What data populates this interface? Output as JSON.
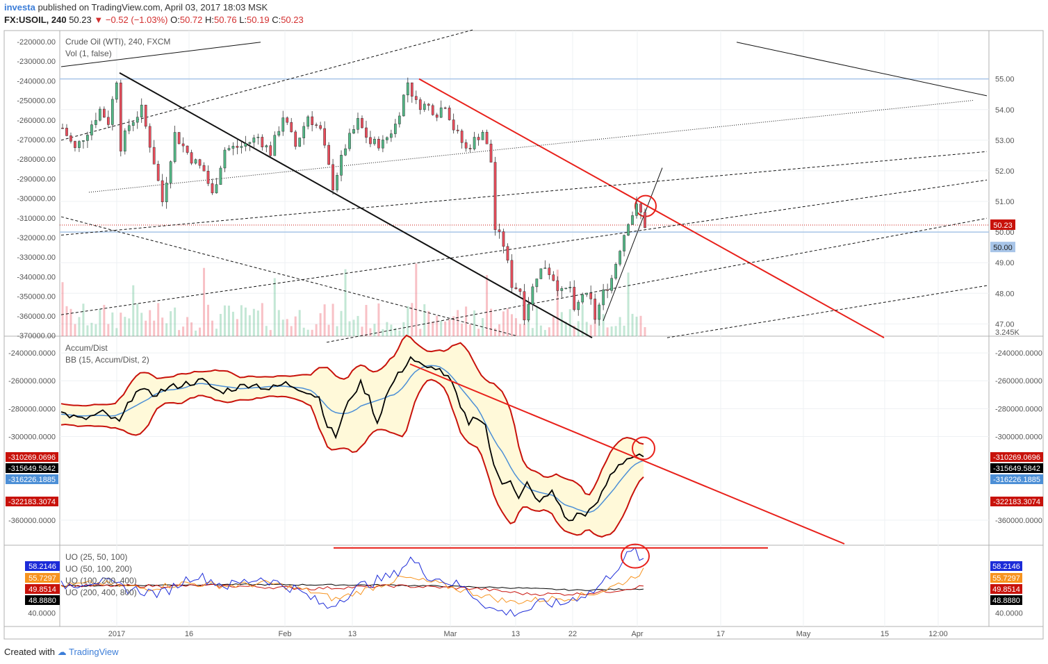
{
  "header": {
    "author": "investa",
    "published_text": "published on TradingView.com, April 03, 2017 18:03 MSK",
    "symbol": "FX:USOIL, 240",
    "last": "50.23",
    "change": "▼ −0.52 (−1.03%)",
    "o_label": "O:",
    "o": "50.72",
    "h_label": "H:",
    "h": "50.76",
    "l_label": "L:",
    "l": "50.19",
    "c_label": "C:",
    "c": "50.23"
  },
  "footer": {
    "created_with": "Created with",
    "brand": "TradingView"
  },
  "colors": {
    "up": "#53b987",
    "down": "#eb4d5c",
    "channel_red": "#e8201a",
    "bb_band": "#c8120b",
    "bb_fill": "#fff9d9",
    "bb_basis": "#4c8fd6",
    "hline": "#a8c5e8",
    "uo1": "#1c2bd8",
    "uo2": "#f7931e",
    "uo3": "#c8120b",
    "uo4": "#000000"
  },
  "chart_data": [
    {
      "type": "candlestick",
      "title": "Crude Oil (WTI), 240, FXCM",
      "subtitle": "Vol (1, false)",
      "x_ticks": [
        "2017",
        "16",
        "Feb",
        "13",
        "Mar",
        "13",
        "22",
        "Apr",
        "17",
        "May",
        "15",
        "12:00"
      ],
      "price_axis": [
        "55.00",
        "54.00",
        "53.00",
        "52.00",
        "51.00",
        "50.00",
        "49.00",
        "48.00",
        "47.00"
      ],
      "price_range": [
        46.6,
        55.9
      ],
      "volume_axis": [
        "-220000.00",
        "-230000.00",
        "-240000.00",
        "-250000.00",
        "-260000.00",
        "-270000.00",
        "-280000.00",
        "-290000.00",
        "-300000.00",
        "-310000.00",
        "-320000.00",
        "-330000.00",
        "-340000.00",
        "-350000.00",
        "-360000.00",
        "-370000.00"
      ],
      "volume_last": "3.245K",
      "last_price_label": "50.23",
      "hline_label": "50.00",
      "horizontal_levels": [
        55.0,
        50.0
      ],
      "close_path": [
        [
          0,
          53.4
        ],
        [
          3,
          52.7
        ],
        [
          6,
          53.3
        ],
        [
          9,
          54.0
        ],
        [
          11,
          53.6
        ],
        [
          13,
          55.0
        ],
        [
          14,
          52.8
        ],
        [
          16,
          53.5
        ],
        [
          19,
          54.0
        ],
        [
          22,
          52.3
        ],
        [
          24,
          51.0
        ],
        [
          27,
          53.2
        ],
        [
          31,
          52.4
        ],
        [
          34,
          52.0
        ],
        [
          36,
          51.2
        ],
        [
          39,
          52.7
        ],
        [
          43,
          52.8
        ],
        [
          47,
          53.1
        ],
        [
          50,
          52.6
        ],
        [
          53,
          53.8
        ],
        [
          56,
          52.8
        ],
        [
          59,
          53.8
        ],
        [
          62,
          53.3
        ],
        [
          65,
          51.5
        ],
        [
          68,
          52.8
        ],
        [
          71,
          53.6
        ],
        [
          74,
          52.9
        ],
        [
          77,
          52.9
        ],
        [
          80,
          53.5
        ],
        [
          83,
          54.9
        ],
        [
          85,
          54.2
        ],
        [
          88,
          54.1
        ],
        [
          90,
          53.9
        ],
        [
          92,
          54.2
        ],
        [
          94,
          53.4
        ],
        [
          97,
          52.7
        ],
        [
          99,
          53.0
        ],
        [
          101,
          53.3
        ],
        [
          103,
          52.3
        ],
        [
          104,
          50.1
        ],
        [
          106,
          49.6
        ],
        [
          108,
          48.3
        ],
        [
          110,
          48.1
        ],
        [
          111,
          47.3
        ],
        [
          114,
          48.6
        ],
        [
          116,
          48.9
        ],
        [
          118,
          48.5
        ],
        [
          120,
          48.0
        ],
        [
          122,
          48.2
        ],
        [
          123,
          47.3
        ],
        [
          125,
          48.0
        ],
        [
          127,
          47.7
        ],
        [
          128,
          47.2
        ],
        [
          130,
          48.0
        ],
        [
          132,
          48.5
        ],
        [
          134,
          49.5
        ],
        [
          136,
          50.4
        ],
        [
          138,
          50.8
        ],
        [
          139,
          50.6
        ],
        [
          140,
          50.23
        ]
      ],
      "annotations": "trendlines and parallel channel drawn on chart"
    },
    {
      "type": "line",
      "title": "Accum/Dist",
      "subtitle": "BB (15, Accum/Dist, 2)",
      "y_ticks": [
        "-240000.0000",
        "-260000.0000",
        "-280000.0000",
        "-300000.0000",
        "-360000.0000"
      ],
      "y_range": [
        -378000,
        -228000
      ],
      "value_labels": [
        {
          "text": "-310269.0696",
          "color": "#c8120b"
        },
        {
          "text": "-315649.5842",
          "color": "#000000"
        },
        {
          "text": "-316226.1885",
          "color": "#4c8fd6"
        },
        {
          "text": "-322183.3074",
          "color": "#c8120b"
        }
      ],
      "series": [
        {
          "name": "Accum/Dist",
          "values": [
            [
              0,
              -283000
            ],
            [
              5,
              -288000
            ],
            [
              10,
              -283000
            ],
            [
              14,
              -290000
            ],
            [
              18,
              -266000
            ],
            [
              22,
              -270000
            ],
            [
              26,
              -265000
            ],
            [
              30,
              -262000
            ],
            [
              34,
              -260000
            ],
            [
              38,
              -268000
            ],
            [
              42,
              -265000
            ],
            [
              46,
              -262000
            ],
            [
              50,
              -266000
            ],
            [
              54,
              -262000
            ],
            [
              58,
              -266000
            ],
            [
              62,
              -272000
            ],
            [
              64,
              -292000
            ],
            [
              66,
              -300000
            ],
            [
              68,
              -283000
            ],
            [
              70,
              -270000
            ],
            [
              72,
              -262000
            ],
            [
              74,
              -272000
            ],
            [
              76,
              -290000
            ],
            [
              78,
              -272000
            ],
            [
              80,
              -260000
            ],
            [
              82,
              -252000
            ],
            [
              84,
              -243000
            ],
            [
              86,
              -248000
            ],
            [
              88,
              -252000
            ],
            [
              90,
              -250000
            ],
            [
              92,
              -255000
            ],
            [
              94,
              -262000
            ],
            [
              96,
              -280000
            ],
            [
              98,
              -290000
            ],
            [
              100,
              -285000
            ],
            [
              102,
              -292000
            ],
            [
              104,
              -322000
            ],
            [
              106,
              -333000
            ],
            [
              108,
              -330000
            ],
            [
              110,
              -345000
            ],
            [
              112,
              -334000
            ],
            [
              114,
              -345000
            ],
            [
              116,
              -345000
            ],
            [
              118,
              -340000
            ],
            [
              120,
              -350000
            ],
            [
              122,
              -362000
            ],
            [
              124,
              -356000
            ],
            [
              126,
              -355000
            ],
            [
              128,
              -352000
            ],
            [
              130,
              -341000
            ],
            [
              132,
              -328000
            ],
            [
              134,
              -320000
            ],
            [
              136,
              -316000
            ],
            [
              138,
              -314000
            ],
            [
              140,
              -315650
            ]
          ]
        }
      ]
    },
    {
      "type": "line",
      "title": "UO (25, 50, 100)",
      "legend": [
        "UO (25, 50, 100)",
        "UO (50, 100, 200)",
        "UO (100, 200, 400)",
        "UO (200, 400, 800)"
      ],
      "y_ticks": [
        "40.0000"
      ],
      "value_labels": [
        {
          "text": "58.2146",
          "color": "#1c2bd8"
        },
        {
          "text": "55.7297",
          "color": "#f7931e"
        },
        {
          "text": "49.8514",
          "color": "#c8120b"
        },
        {
          "text": "48.8880",
          "color": "#000000"
        }
      ],
      "y_range": [
        35,
        65
      ],
      "series": [
        {
          "name": "UO (25, 50, 100)",
          "values": [
            [
              0,
              50
            ],
            [
              8,
              52
            ],
            [
              16,
              49
            ],
            [
              24,
              47
            ],
            [
              32,
              54
            ],
            [
              40,
              50
            ],
            [
              48,
              53
            ],
            [
              56,
              49
            ],
            [
              64,
              42
            ],
            [
              72,
              50
            ],
            [
              80,
              54
            ],
            [
              84,
              60
            ],
            [
              88,
              54
            ],
            [
              96,
              50
            ],
            [
              104,
              41
            ],
            [
              108,
              40
            ],
            [
              112,
              41
            ],
            [
              116,
              44
            ],
            [
              120,
              43
            ],
            [
              124,
              46
            ],
            [
              128,
              48
            ],
            [
              132,
              54
            ],
            [
              136,
              61
            ],
            [
              138,
              63
            ],
            [
              140,
              58.2
            ]
          ]
        },
        {
          "name": "UO (50, 100, 200)",
          "values": [
            [
              0,
              50
            ],
            [
              10,
              51
            ],
            [
              20,
              49
            ],
            [
              30,
              51
            ],
            [
              40,
              50
            ],
            [
              50,
              51
            ],
            [
              60,
              48
            ],
            [
              66,
              45
            ],
            [
              74,
              49
            ],
            [
              82,
              53
            ],
            [
              90,
              51
            ],
            [
              100,
              47
            ],
            [
              108,
              44
            ],
            [
              116,
              45
            ],
            [
              124,
              46
            ],
            [
              130,
              48
            ],
            [
              136,
              52
            ],
            [
              140,
              55.7
            ]
          ]
        },
        {
          "name": "UO (100, 200, 400)",
          "values": [
            [
              0,
              50
            ],
            [
              20,
              50
            ],
            [
              40,
              50
            ],
            [
              60,
              49
            ],
            [
              80,
              50
            ],
            [
              100,
              49
            ],
            [
              112,
              47
            ],
            [
              124,
              47
            ],
            [
              132,
              48
            ],
            [
              140,
              49.9
            ]
          ]
        },
        {
          "name": "UO (200, 400, 800)",
          "values": [
            [
              0,
              50
            ],
            [
              40,
              50.5
            ],
            [
              80,
              50.3
            ],
            [
              110,
              49.2
            ],
            [
              124,
              48.4
            ],
            [
              140,
              48.9
            ]
          ]
        }
      ]
    }
  ]
}
